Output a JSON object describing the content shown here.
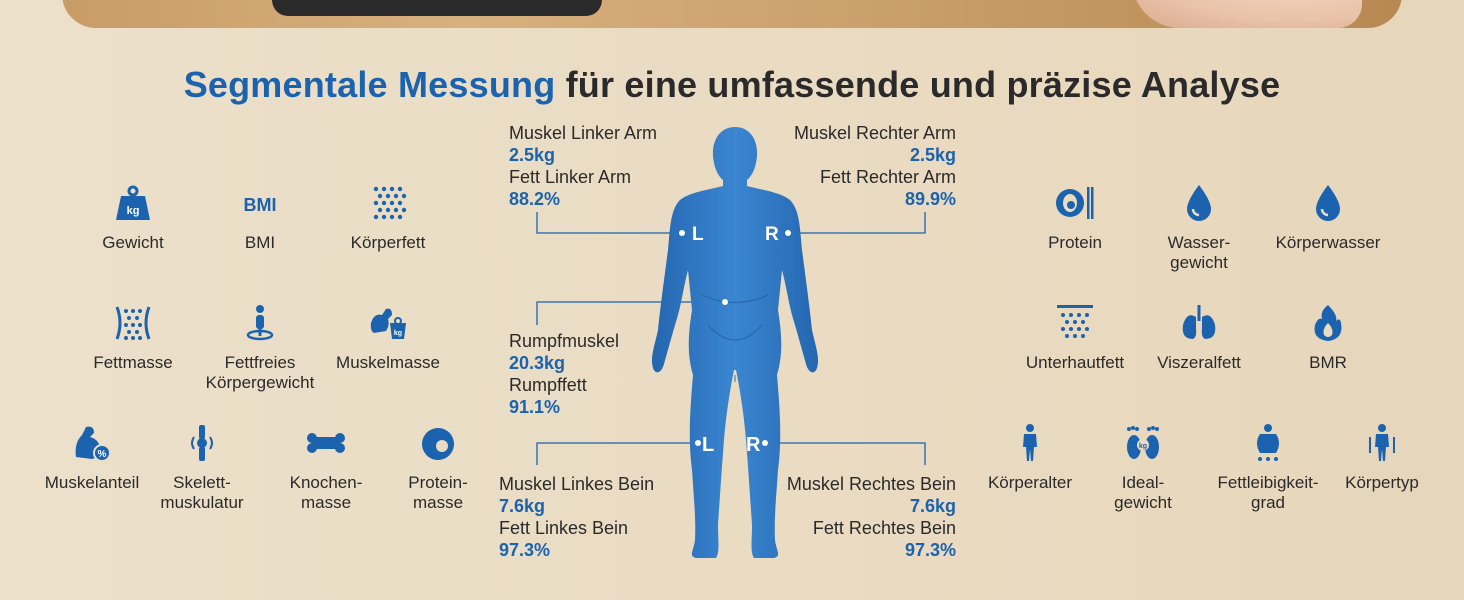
{
  "title": {
    "highlight": "Segmentale Messung",
    "rest": " für eine umfassende und präzise Analyse"
  },
  "colors": {
    "accent": "#1b63ae",
    "body_fill": "#2f79c5",
    "text": "#2a2a2a"
  },
  "left_metrics": [
    {
      "label": "Gewicht",
      "icon": "weight-kg-icon"
    },
    {
      "label": "BMI",
      "icon": "bmi-icon"
    },
    {
      "label": "Körperfett",
      "icon": "dots-icon"
    },
    {
      "label": "Fettmasse",
      "icon": "fat-mass-icon"
    },
    {
      "label": "Fettfreies\nKörpergewicht",
      "icon": "person-pin-icon"
    },
    {
      "label": "Muskelmasse",
      "icon": "muscle-mass-icon"
    },
    {
      "label": "Muskelanteil",
      "icon": "muscle-percent-icon"
    },
    {
      "label": "Skelett-\nmuskulatur",
      "icon": "knee-joint-icon"
    },
    {
      "label": "Knochen-\nmasse",
      "icon": "bone-icon"
    },
    {
      "label": "Protein-\nmasse",
      "icon": "egg-icon"
    }
  ],
  "right_metrics": [
    {
      "label": "Protein",
      "icon": "egg-plate-icon"
    },
    {
      "label": "Wasser-\ngewicht",
      "icon": "water-drop-icon"
    },
    {
      "label": "Körperwasser",
      "icon": "water-drop-icon"
    },
    {
      "label": "Unterhautfett",
      "icon": "subcutaneous-fat-icon"
    },
    {
      "label": "Viszeralfett",
      "icon": "lungs-icon"
    },
    {
      "label": "BMR",
      "icon": "flame-icon"
    },
    {
      "label": "Körperalter",
      "icon": "person-icon"
    },
    {
      "label": "Ideal-\ngewicht",
      "icon": "feet-kg-icon"
    },
    {
      "label": "Fettleibigkeit-\ngrad",
      "icon": "obesity-icon"
    },
    {
      "label": "Körpertyp",
      "icon": "body-type-icon"
    }
  ],
  "segments": {
    "left_arm": {
      "muscle_label": "Muskel Linker Arm",
      "muscle_value": "2.5kg",
      "fat_label": "Fett Linker Arm",
      "fat_value": "88.2%"
    },
    "right_arm": {
      "muscle_label": "Muskel Rechter Arm",
      "muscle_value": "2.5kg",
      "fat_label": "Fett Rechter Arm",
      "fat_value": "89.9%"
    },
    "trunk": {
      "muscle_label": "Rumpfmuskel",
      "muscle_value": "20.3kg",
      "fat_label": "Rumpffett",
      "fat_value": "91.1%"
    },
    "left_leg": {
      "muscle_label": "Muskel Linkes Bein",
      "muscle_value": "7.6kg",
      "fat_label": "Fett Linkes Bein",
      "fat_value": "97.3%"
    },
    "right_leg": {
      "muscle_label": "Muskel Rechtes Bein",
      "muscle_value": "7.6kg",
      "fat_label": "Fett Rechtes Bein",
      "fat_value": "97.3%"
    }
  },
  "body_markers": {
    "left": "L",
    "right": "R"
  }
}
